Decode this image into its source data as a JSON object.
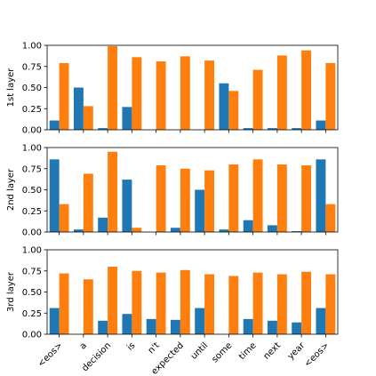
{
  "chart_data": [
    {
      "type": "bar",
      "ylabel": "1st layer",
      "ylim": [
        0,
        1
      ],
      "yticks": [
        "0.00",
        "0.25",
        "0.50",
        "0.75",
        "1.00"
      ],
      "categories": [
        "<eos>",
        "a",
        "decision",
        "is",
        "n't",
        "expected",
        "until",
        "some",
        "time",
        "next",
        "year",
        "<eos>"
      ],
      "series": [
        {
          "color": "#1f77b4",
          "values": [
            0.11,
            0.5,
            0.02,
            0.27,
            0.0,
            0.0,
            0.0,
            0.55,
            0.02,
            0.02,
            0.02,
            0.11
          ]
        },
        {
          "color": "#ff7f0e",
          "values": [
            0.79,
            0.28,
            0.99,
            0.86,
            0.81,
            0.87,
            0.82,
            0.46,
            0.71,
            0.88,
            0.94,
            0.79
          ]
        }
      ]
    },
    {
      "type": "bar",
      "ylabel": "2nd layer",
      "ylim": [
        0,
        1
      ],
      "yticks": [
        "0.00",
        "0.25",
        "0.50",
        "0.75",
        "1.00"
      ],
      "categories": [
        "<eos>",
        "a",
        "decision",
        "is",
        "n't",
        "expected",
        "until",
        "some",
        "time",
        "next",
        "year",
        "<eos>"
      ],
      "series": [
        {
          "color": "#1f77b4",
          "values": [
            0.86,
            0.03,
            0.17,
            0.62,
            0.0,
            0.05,
            0.5,
            0.03,
            0.14,
            0.08,
            0.01,
            0.86
          ]
        },
        {
          "color": "#ff7f0e",
          "values": [
            0.33,
            0.69,
            0.95,
            0.05,
            0.79,
            0.75,
            0.73,
            0.8,
            0.86,
            0.8,
            0.79,
            0.33
          ]
        }
      ]
    },
    {
      "type": "bar",
      "ylabel": "3rd layer",
      "ylim": [
        0,
        1
      ],
      "yticks": [
        "0.00",
        "0.25",
        "0.50",
        "0.75",
        "1.00"
      ],
      "categories": [
        "<eos>",
        "a",
        "decision",
        "is",
        "n't",
        "expected",
        "until",
        "some",
        "time",
        "next",
        "year",
        "<eos>"
      ],
      "series": [
        {
          "color": "#1f77b4",
          "values": [
            0.31,
            0.0,
            0.16,
            0.24,
            0.18,
            0.17,
            0.31,
            0.0,
            0.18,
            0.16,
            0.14,
            0.31
          ]
        },
        {
          "color": "#ff7f0e",
          "values": [
            0.72,
            0.65,
            0.8,
            0.75,
            0.73,
            0.76,
            0.71,
            0.69,
            0.73,
            0.71,
            0.74,
            0.71
          ]
        }
      ]
    }
  ],
  "x_tick_labels": [
    "<eos>",
    "a",
    "decision",
    "is",
    "n't",
    "expected",
    "until",
    "some",
    "time",
    "next",
    "year",
    "<eos>"
  ]
}
